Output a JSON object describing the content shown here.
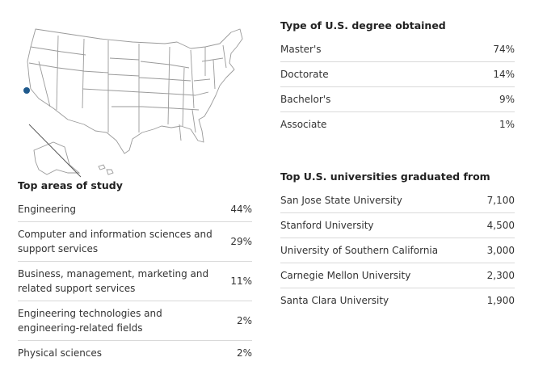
{
  "chart_data": [
    {
      "type": "table",
      "title": "Top areas of study",
      "rows": [
        {
          "label": "Engineering",
          "value": "44%"
        },
        {
          "label": "Computer and information sciences and support services",
          "value": "29%"
        },
        {
          "label": "Business, management, marketing and related support services",
          "value": "11%"
        },
        {
          "label": "Engineering technologies and engineering-related fields",
          "value": "2%"
        },
        {
          "label": "Physical sciences",
          "value": "2%"
        }
      ]
    },
    {
      "type": "table",
      "title": "Type of U.S. degree obtained",
      "rows": [
        {
          "label": "Master's",
          "value": "74%"
        },
        {
          "label": "Doctorate",
          "value": "14%"
        },
        {
          "label": "Bachelor's",
          "value": "9%"
        },
        {
          "label": "Associate",
          "value": "1%"
        }
      ]
    },
    {
      "type": "table",
      "title": "Top U.S. universities graduated from",
      "rows": [
        {
          "label": "San Jose State University",
          "value": "7,100"
        },
        {
          "label": "Stanford University",
          "value": "4,500"
        },
        {
          "label": "University of Southern California",
          "value": "3,000"
        },
        {
          "label": "Carnegie Mellon University",
          "value": "2,300"
        },
        {
          "label": "Santa Clara University",
          "value": "1,900"
        }
      ]
    }
  ],
  "map": {
    "marker_color": "#1f5a8c",
    "state_fill": "#ffffff",
    "state_stroke": "#9a9a9a"
  }
}
